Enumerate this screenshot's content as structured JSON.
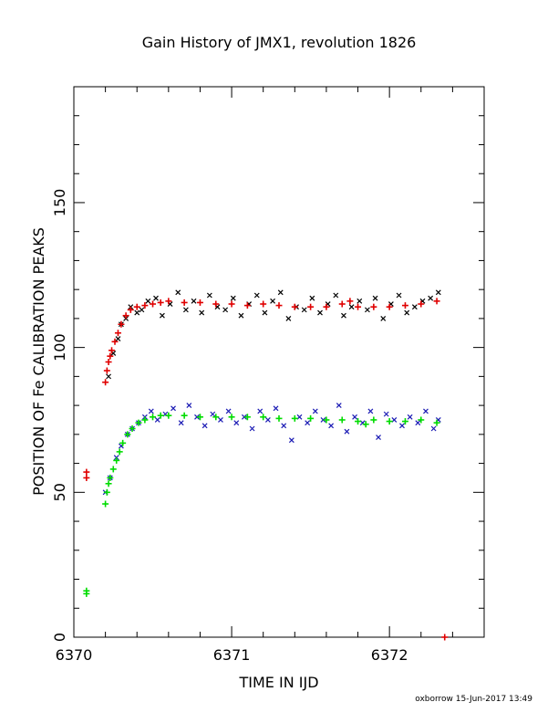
{
  "chart_data": {
    "type": "scatter",
    "title": "Gain History of JMX1, revolution 1826",
    "xlabel": "TIME IN IJD",
    "ylabel": "POSITION OF Fe CALIBRATION PEAKS",
    "xlim": [
      6370,
      6372.6
    ],
    "ylim": [
      0,
      190
    ],
    "xticks": [
      6370,
      6371,
      6372
    ],
    "xtick_labels": [
      "6370",
      "6371",
      "6372"
    ],
    "yticks": [
      0,
      50,
      100,
      150
    ],
    "ytick_labels": [
      "0",
      "50",
      "100",
      "150"
    ],
    "grid": false,
    "series": [
      {
        "marker": "x",
        "color": "#000000",
        "x": [
          6370.22,
          6370.25,
          6370.28,
          6370.3,
          6370.33,
          6370.36,
          6370.4,
          6370.43,
          6370.47,
          6370.52,
          6370.56,
          6370.61,
          6370.66,
          6370.71,
          6370.76,
          6370.81,
          6370.86,
          6370.91,
          6370.96,
          6371.01,
          6371.06,
          6371.11,
          6371.16,
          6371.21,
          6371.26,
          6371.31,
          6371.36,
          6371.41,
          6371.46,
          6371.51,
          6371.56,
          6371.61,
          6371.66,
          6371.71,
          6371.76,
          6371.81,
          6371.86,
          6371.91,
          6371.96,
          6372.01,
          6372.06,
          6372.11,
          6372.16,
          6372.21,
          6372.26,
          6372.31
        ],
        "y": [
          90,
          98,
          103,
          108,
          110,
          114,
          112,
          113,
          116,
          117,
          111,
          115,
          119,
          113,
          116,
          112,
          118,
          114,
          113,
          117,
          111,
          115,
          118,
          112,
          116,
          119,
          110,
          114,
          113,
          117,
          112,
          115,
          118,
          111,
          114,
          116,
          113,
          117,
          110,
          115,
          118,
          112,
          114,
          116,
          117,
          119
        ]
      },
      {
        "marker": "x",
        "color": "#1a1ab4",
        "x": [
          6370.2,
          6370.23,
          6370.27,
          6370.3,
          6370.34,
          6370.37,
          6370.41,
          6370.45,
          6370.49,
          6370.53,
          6370.58,
          6370.63,
          6370.68,
          6370.73,
          6370.78,
          6370.83,
          6370.88,
          6370.93,
          6370.98,
          6371.03,
          6371.08,
          6371.13,
          6371.18,
          6371.23,
          6371.28,
          6371.33,
          6371.38,
          6371.43,
          6371.48,
          6371.53,
          6371.58,
          6371.63,
          6371.68,
          6371.73,
          6371.78,
          6371.83,
          6371.88,
          6371.93,
          6371.98,
          6372.03,
          6372.08,
          6372.13,
          6372.18,
          6372.23,
          6372.28,
          6372.31
        ],
        "y": [
          50,
          55,
          62,
          66,
          70,
          72,
          74,
          76,
          78,
          75,
          77,
          79,
          74,
          80,
          76,
          73,
          77,
          75,
          78,
          74,
          76,
          72,
          78,
          75,
          79,
          73,
          68,
          76,
          74,
          78,
          75,
          73,
          80,
          71,
          76,
          74,
          78,
          69,
          77,
          75,
          73,
          76,
          74,
          78,
          72,
          75
        ]
      },
      {
        "marker": "+",
        "color": "#e00000",
        "x": [
          6370.08,
          6370.08,
          6370.2,
          6370.21,
          6370.22,
          6370.23,
          6370.24,
          6370.26,
          6370.28,
          6370.3,
          6370.33,
          6370.36,
          6370.4,
          6370.45,
          6370.5,
          6370.55,
          6370.6,
          6370.7,
          6370.8,
          6370.9,
          6371.0,
          6371.1,
          6371.2,
          6371.3,
          6371.4,
          6371.5,
          6371.6,
          6371.7,
          6371.75,
          6371.8,
          6371.9,
          6372.0,
          6372.1,
          6372.2,
          6372.3,
          6372.35
        ],
        "y": [
          57,
          55,
          88,
          92,
          95,
          97,
          99,
          102,
          105,
          108,
          111,
          113,
          114,
          114.5,
          115,
          115.5,
          116,
          115.5,
          115.5,
          115,
          115,
          114.5,
          115,
          114.5,
          114,
          114,
          114,
          115,
          116,
          114,
          114,
          114,
          114.5,
          115,
          116,
          0
        ]
      },
      {
        "marker": "+",
        "color": "#00dc00",
        "x": [
          6370.08,
          6370.08,
          6370.2,
          6370.21,
          6370.22,
          6370.23,
          6370.25,
          6370.27,
          6370.29,
          6370.31,
          6370.34,
          6370.37,
          6370.41,
          6370.45,
          6370.5,
          6370.55,
          6370.6,
          6370.7,
          6370.8,
          6370.9,
          6371.0,
          6371.1,
          6371.2,
          6371.3,
          6371.4,
          6371.5,
          6371.6,
          6371.7,
          6371.8,
          6371.85,
          6371.9,
          6372.0,
          6372.1,
          6372.2,
          6372.3
        ],
        "y": [
          16,
          15,
          46,
          50,
          53,
          55,
          58,
          61,
          64,
          67,
          70,
          72,
          74,
          75,
          76,
          76.5,
          76.5,
          76.5,
          76,
          76,
          76,
          76,
          76,
          75.5,
          75.5,
          75.5,
          75,
          75,
          74.5,
          73.5,
          75,
          74.5,
          74.5,
          75,
          74
        ]
      }
    ]
  },
  "footer": "oxborrow 15-Jun-2017 13:49"
}
